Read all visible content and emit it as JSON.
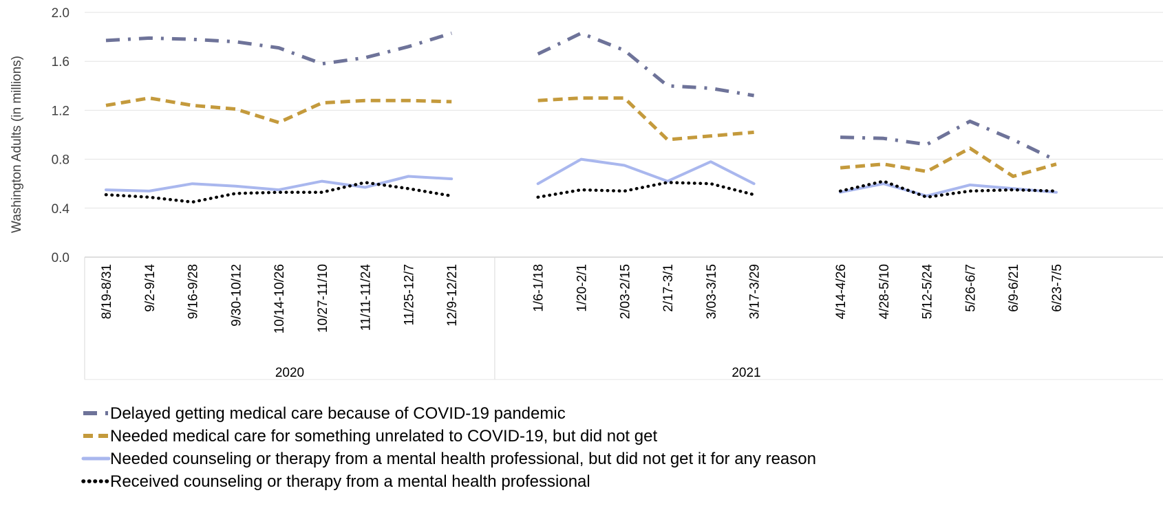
{
  "chart_data": {
    "type": "line",
    "ylabel": "Washington Adults (in millions)",
    "ylim": [
      0,
      2.0
    ],
    "yticks": [
      "0.0",
      "0.4",
      "0.8",
      "1.2",
      "1.6",
      "2.0"
    ],
    "grid": true,
    "legend_position": "bottom",
    "groups": [
      {
        "name": "2020",
        "categories": [
          "8/19-8/31",
          "9/2-9/14",
          "9/16-9/28",
          "9/30-10/12",
          "10/14-10/26",
          "10/27-11/10",
          "11/11-11/24",
          "11/25-12/7",
          "12/9-12/21"
        ]
      },
      {
        "name": "2021",
        "categories": [
          "1/6-1/18",
          "1/20-2/1",
          "2/03-2/15",
          "2/17-3/1",
          "3/03-3/15",
          "3/17-3/29"
        ]
      },
      {
        "name": "",
        "categories": [
          "4/14-4/26",
          "4/28-5/10",
          "5/12-5/24",
          "5/26-6/7",
          "6/9-6/21",
          "6/23-7/5"
        ]
      }
    ],
    "series": [
      {
        "name": "Delayed getting medical care because of COVID-19 pandemic",
        "color": "#6E7399",
        "style": "dash-dot",
        "values": [
          [
            1.77,
            1.79,
            1.78,
            1.76,
            1.71,
            1.58,
            1.63,
            1.72,
            1.83
          ],
          [
            1.66,
            1.83,
            1.69,
            1.4,
            1.38,
            1.32
          ],
          [
            0.98,
            0.97,
            0.92,
            1.11,
            0.96,
            0.79
          ]
        ]
      },
      {
        "name": "Needed medical care for something unrelated to COVID-19, but did not get",
        "color": "#C49A3C",
        "style": "dash",
        "values": [
          [
            1.24,
            1.3,
            1.24,
            1.21,
            1.1,
            1.26,
            1.28,
            1.28,
            1.27
          ],
          [
            1.28,
            1.3,
            1.3,
            0.96,
            0.99,
            1.02
          ],
          [
            0.73,
            0.76,
            0.7,
            0.89,
            0.66,
            0.76
          ]
        ]
      },
      {
        "name": "Needed counseling or therapy from a mental health professional, but did not get it for any reason",
        "color": "#A9B7EE",
        "style": "solid",
        "values": [
          [
            0.55,
            0.54,
            0.6,
            0.58,
            0.55,
            0.62,
            0.57,
            0.66,
            0.64
          ],
          [
            0.6,
            0.8,
            0.75,
            0.62,
            0.78,
            0.6
          ],
          [
            0.53,
            0.6,
            0.5,
            0.59,
            0.56,
            0.53
          ]
        ]
      },
      {
        "name": "Received counseling or therapy from a mental health professional",
        "color": "#000000",
        "style": "dot",
        "values": [
          [
            0.51,
            0.49,
            0.45,
            0.52,
            0.53,
            0.53,
            0.61,
            0.56,
            0.5
          ],
          [
            0.49,
            0.55,
            0.54,
            0.61,
            0.6,
            0.51
          ],
          [
            0.54,
            0.62,
            0.49,
            0.54,
            0.55,
            0.54
          ]
        ]
      }
    ]
  }
}
